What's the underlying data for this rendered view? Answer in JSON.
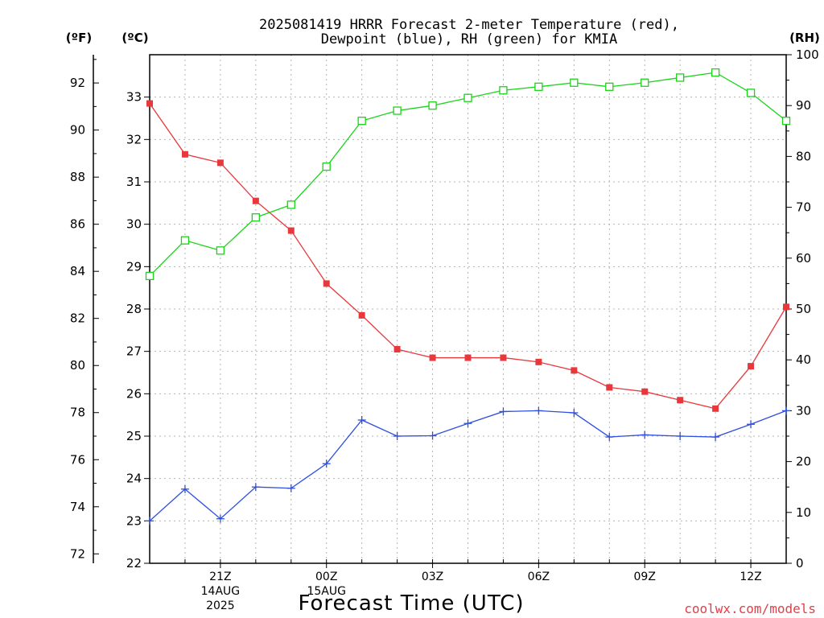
{
  "title_line1": "2025081419 HRRR Forecast 2-meter Temperature (red),",
  "title_line2": "Dewpoint (blue), RH (green) for KMIA",
  "credit": "coolwx.com/models",
  "colors": {
    "temperature": "#e8383c",
    "dewpoint": "#2e4fe0",
    "rh": "#19d419",
    "axis": "#000000"
  },
  "chart_data": {
    "type": "line",
    "title": "2025081419 HRRR Forecast 2-meter Temperature (red), Dewpoint (blue), RH (green) for KMIA",
    "xlabel": "Forecast Time (UTC)",
    "units": {
      "fahrenheit": "(ºF)",
      "celsius": "(ºC)",
      "rh": "(RH)"
    },
    "x_hours_since_start": [
      0,
      1,
      2,
      3,
      4,
      5,
      6,
      7,
      8,
      9,
      10,
      11,
      12,
      13,
      14,
      15,
      16,
      17,
      18
    ],
    "x_tick_labels": [
      {
        "hour": 2,
        "lines": [
          "21Z",
          "14AUG",
          "2025"
        ]
      },
      {
        "hour": 5,
        "lines": [
          "00Z",
          "15AUG"
        ]
      },
      {
        "hour": 8,
        "lines": [
          "03Z"
        ]
      },
      {
        "hour": 11,
        "lines": [
          "06Z"
        ]
      },
      {
        "hour": 14,
        "lines": [
          "09Z"
        ]
      },
      {
        "hour": 17,
        "lines": [
          "12Z"
        ]
      }
    ],
    "axes": {
      "celsius": {
        "min": 22,
        "max": 34,
        "ticks": [
          22,
          23,
          24,
          25,
          26,
          27,
          28,
          29,
          30,
          31,
          32,
          33
        ]
      },
      "fahrenheit": {
        "ticks": [
          72,
          74,
          76,
          78,
          80,
          82,
          84,
          86,
          88,
          90,
          92
        ]
      },
      "rh": {
        "min": 0,
        "max": 100,
        "ticks": [
          0,
          10,
          20,
          30,
          40,
          50,
          60,
          70,
          80,
          90,
          100
        ]
      }
    },
    "grid": true,
    "series": [
      {
        "name": "Temperature",
        "color": "#e8383c",
        "marker": "filled-square",
        "axis": "celsius",
        "values": [
          32.85,
          31.65,
          31.45,
          30.55,
          29.85,
          28.6,
          27.85,
          27.05,
          26.85,
          26.85,
          26.85,
          26.75,
          26.55,
          26.15,
          26.05,
          25.85,
          25.65,
          26.65,
          28.05
        ]
      },
      {
        "name": "Dewpoint",
        "color": "#2e4fe0",
        "marker": "plus",
        "axis": "celsius",
        "values": [
          23.0,
          23.75,
          23.05,
          23.8,
          23.77,
          24.35,
          25.38,
          25.0,
          25.01,
          25.3,
          25.58,
          25.6,
          25.55,
          24.98,
          25.03,
          25.0,
          24.98,
          25.28,
          25.6
        ]
      },
      {
        "name": "RH",
        "color": "#19d419",
        "marker": "open-square",
        "axis": "rh",
        "values": [
          56.5,
          63.5,
          61.5,
          68.0,
          70.5,
          78.0,
          87.0,
          89.0,
          90.0,
          91.5,
          93.0,
          93.7,
          94.5,
          93.7,
          94.5,
          95.5,
          96.5,
          92.5,
          87.0
        ]
      }
    ]
  }
}
